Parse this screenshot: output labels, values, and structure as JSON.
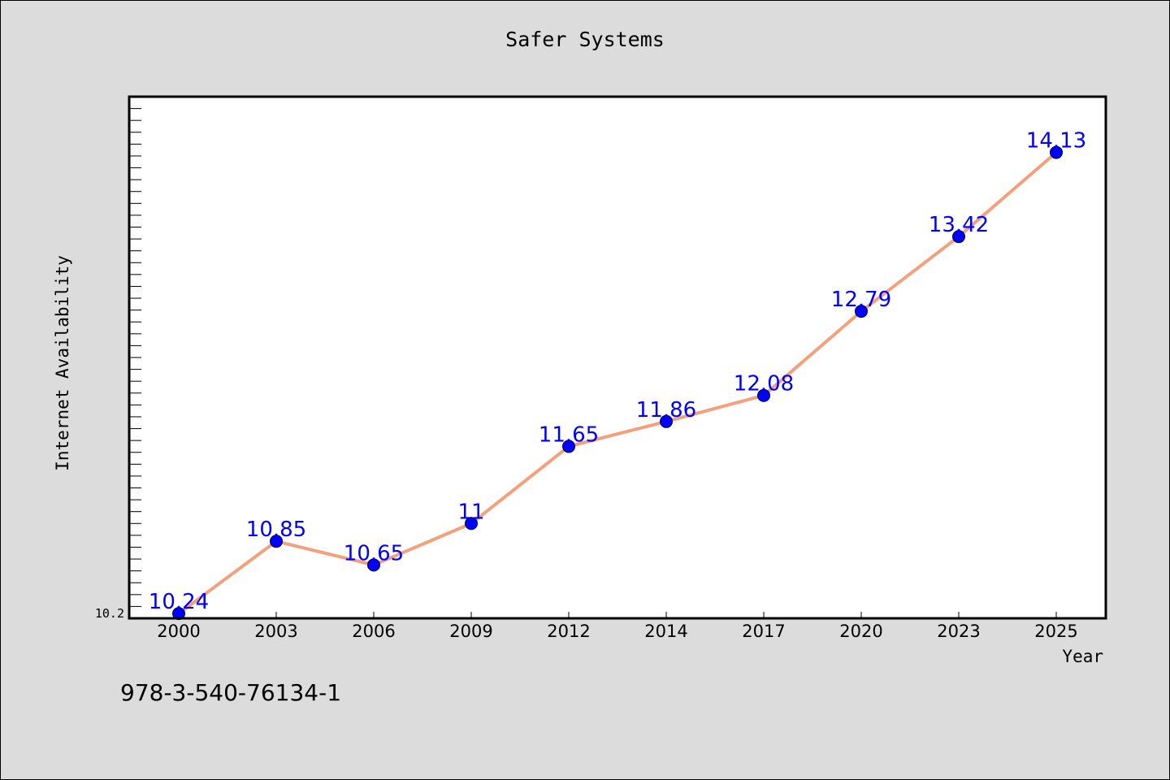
{
  "chart_data": {
    "type": "line",
    "title": "Safer Systems",
    "xlabel": "Year",
    "ylabel": "Internet Availability",
    "categories": [
      "2000",
      "2003",
      "2006",
      "2009",
      "2012",
      "2014",
      "2017",
      "2020",
      "2023",
      "2025"
    ],
    "values": [
      10.24,
      10.85,
      10.65,
      11,
      11.65,
      11.86,
      12.08,
      12.79,
      13.42,
      14.13
    ],
    "value_labels": [
      "10.24",
      "10.85",
      "10.65",
      "11",
      "11.65",
      "11.86",
      "12.08",
      "12.79",
      "13.42",
      "14.13"
    ],
    "ylim": [
      10.2,
      14.6
    ],
    "y_tick_label": "10.2",
    "grid": false,
    "colors": {
      "line": "#f4a07c",
      "marker": "#0000ff",
      "data_label": "#0000ff"
    }
  },
  "footer": {
    "isbn": "978-3-540-76134-1"
  }
}
